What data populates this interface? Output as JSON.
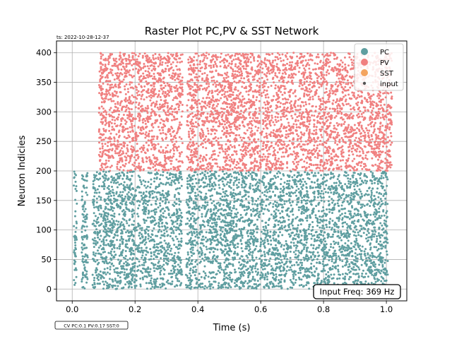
{
  "chart_data": {
    "type": "scatter",
    "title": "Raster Plot PC,PV & SST Network",
    "xlabel": "Time (s)",
    "ylabel": "Neuron Indicies",
    "xlim": [
      -0.05,
      1.065
    ],
    "ylim": [
      -20,
      420
    ],
    "x_ticks": [
      0.0,
      0.2,
      0.4,
      0.6,
      0.8,
      1.0
    ],
    "x_tick_labels": [
      "0.0",
      "0.2",
      "0.4",
      "0.6",
      "0.8",
      "1.0"
    ],
    "y_ticks": [
      0,
      50,
      100,
      150,
      200,
      250,
      300,
      350,
      400
    ],
    "y_tick_labels": [
      "0",
      "50",
      "100",
      "150",
      "200",
      "250",
      "300",
      "350",
      "400"
    ],
    "grid": true,
    "legend_placement": "top-right",
    "timestamp": "ts: 2022-10-28-12-37",
    "cv_note": "CV PC:0.1 PV:0.17 SST:0",
    "freq_note": "Input Freq: 369 Hz",
    "series": [
      {
        "name": "PC",
        "color": "#5f9ea0",
        "neuron_range": [
          0,
          199
        ],
        "active_intervals_s": [
          [
            0.005,
            0.015
          ],
          [
            0.03,
            0.05
          ],
          [
            0.065,
            0.35
          ],
          [
            0.362,
            1.005
          ]
        ]
      },
      {
        "name": "PV",
        "color": "#f08080",
        "neuron_range": [
          200,
          400
        ],
        "active_intervals_s": [
          [
            0.085,
            0.352
          ],
          [
            0.365,
            1.018
          ]
        ]
      },
      {
        "name": "SST",
        "color": "#f4a460",
        "neuron_range": [],
        "active_intervals_s": []
      },
      {
        "name": "input",
        "color": "#555555",
        "neuron_range": [],
        "active_intervals_s": []
      }
    ]
  }
}
